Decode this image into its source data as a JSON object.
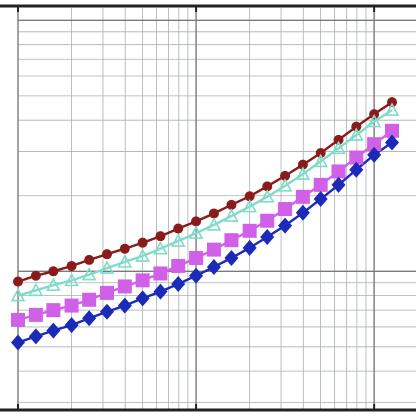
{
  "chart_data": {
    "type": "line",
    "title": "",
    "xlabel": "",
    "ylabel": "",
    "xscale": "log",
    "yscale": "log",
    "grid": true,
    "legend": "none",
    "x": [
      1.0,
      1.26,
      1.58,
      2.0,
      2.51,
      3.16,
      3.98,
      5.01,
      6.31,
      7.94,
      10.0,
      12.6,
      15.8,
      20.0,
      25.1,
      31.6,
      39.8,
      50.1,
      63.1,
      79.4,
      100.0,
      126.0
    ],
    "xlim": [
      1.0,
      126.0
    ],
    "ylim": [
      0.28,
      11.2
    ],
    "series": [
      {
        "color": "#8b1a1a",
        "marker": "circle",
        "values": [
          0.91,
          0.96,
          1.0,
          1.05,
          1.11,
          1.17,
          1.23,
          1.3,
          1.38,
          1.48,
          1.58,
          1.7,
          1.84,
          1.99,
          2.18,
          2.4,
          2.66,
          2.96,
          3.34,
          3.77,
          4.23,
          4.72
        ]
      },
      {
        "color": "#7fdcc8",
        "marker": "triangle",
        "values": [
          0.8,
          0.84,
          0.88,
          0.92,
          0.97,
          1.03,
          1.09,
          1.15,
          1.23,
          1.32,
          1.42,
          1.53,
          1.66,
          1.81,
          1.98,
          2.19,
          2.44,
          2.74,
          3.09,
          3.49,
          3.95,
          4.39
        ]
      },
      {
        "color": "#d060e8",
        "marker": "square",
        "values": [
          0.64,
          0.67,
          0.7,
          0.73,
          0.77,
          0.82,
          0.87,
          0.92,
          0.98,
          1.05,
          1.13,
          1.22,
          1.33,
          1.45,
          1.59,
          1.77,
          1.98,
          2.21,
          2.5,
          2.84,
          3.21,
          3.63
        ]
      },
      {
        "color": "#1c2ab8",
        "marker": "diamond",
        "values": [
          0.52,
          0.55,
          0.58,
          0.61,
          0.65,
          0.69,
          0.73,
          0.78,
          0.83,
          0.89,
          0.96,
          1.04,
          1.13,
          1.24,
          1.37,
          1.52,
          1.71,
          1.94,
          2.21,
          2.54,
          2.91,
          3.26
        ]
      }
    ]
  }
}
